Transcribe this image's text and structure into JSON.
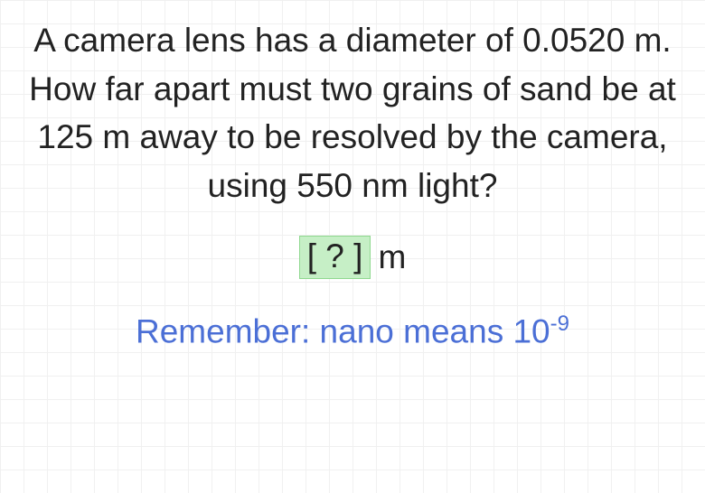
{
  "question": {
    "text": "A camera lens has a diameter of 0.0520 m. How far apart must two grains of sand be at 125 m away to be resolved by the camera, using 550 nm light?",
    "color": "#222222",
    "fontsize": 37,
    "line_height": 1.45
  },
  "answer": {
    "placeholder": "[ ? ]",
    "unit": "m",
    "box_bg": "#c6efc6",
    "box_border": "#8fd88f",
    "fontsize": 37
  },
  "hint": {
    "prefix": "Remember:  nano means 10",
    "exponent": "-9",
    "color": "#4b6fd6",
    "fontsize": 37
  },
  "background": {
    "color": "#ffffff",
    "grid_color": "#f0f0f0",
    "grid_size": 26
  }
}
